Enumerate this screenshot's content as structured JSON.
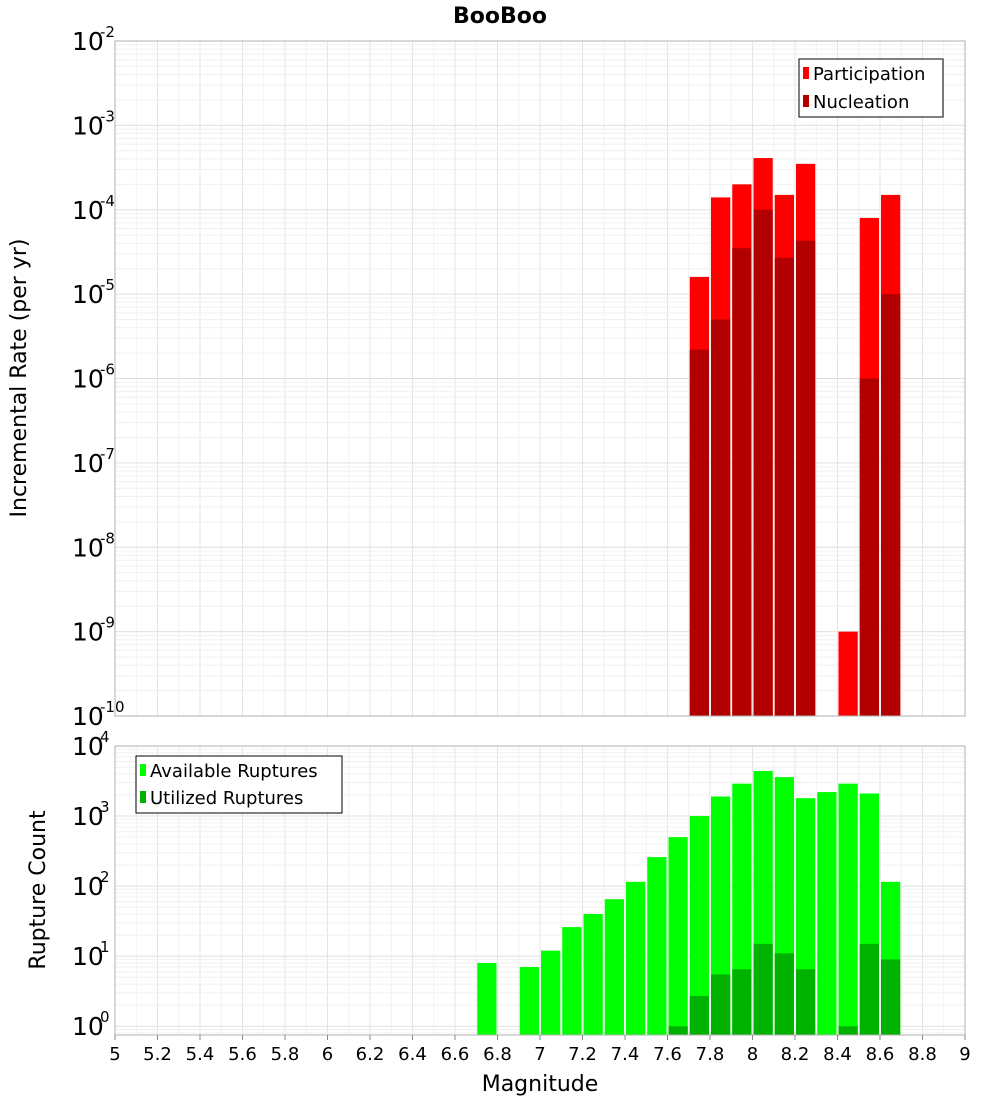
{
  "chart_data": [
    {
      "type": "bar",
      "title": "BooBoo",
      "ylabel": "Incremental Rate (per yr)",
      "yscale": "log",
      "ylim": [
        1e-10,
        0.01
      ],
      "xlim": [
        5,
        9
      ],
      "grid": true,
      "legend_position": "top-right",
      "bin_width": 0.1,
      "series": [
        {
          "name": "Participation",
          "color": "#ff0000",
          "x": [
            7.75,
            7.85,
            7.95,
            8.05,
            8.15,
            8.25,
            8.45,
            8.55,
            8.65
          ],
          "values": [
            1.6e-05,
            0.00014,
            0.0002,
            0.00041,
            0.00015,
            0.00035,
            1e-09,
            8e-05,
            0.00015
          ]
        },
        {
          "name": "Nucleation",
          "color": "#b20000",
          "x": [
            7.75,
            7.85,
            7.95,
            8.05,
            8.15,
            8.25,
            8.55,
            8.65
          ],
          "values": [
            2.2e-06,
            5e-06,
            3.5e-05,
            0.0001,
            2.7e-05,
            4.3e-05,
            1e-06,
            1e-05
          ]
        }
      ],
      "y_tick_exponents": [
        -10,
        -9,
        -8,
        -7,
        -6,
        -5,
        -4,
        -3,
        -2
      ]
    },
    {
      "type": "bar",
      "ylabel": "Rupture Count",
      "xlabel": "Magnitude",
      "yscale": "log",
      "ylim": [
        0.75,
        10000
      ],
      "xlim": [
        5,
        9
      ],
      "grid": true,
      "legend_position": "top-left",
      "bin_width": 0.1,
      "x_tick_labels": [
        "5",
        "5.2",
        "5.4",
        "5.6",
        "5.8",
        "6",
        "6.2",
        "6.4",
        "6.6",
        "6.8",
        "7",
        "7.2",
        "7.4",
        "7.6",
        "7.8",
        "8",
        "8.2",
        "8.4",
        "8.6",
        "8.8",
        "9"
      ],
      "series": [
        {
          "name": "Available Ruptures",
          "color": "#00ff00",
          "x": [
            6.75,
            6.95,
            7.05,
            7.15,
            7.25,
            7.35,
            7.45,
            7.55,
            7.65,
            7.75,
            7.85,
            7.95,
            8.05,
            8.15,
            8.25,
            8.35,
            8.45,
            8.55,
            8.65
          ],
          "values": [
            8,
            7,
            12,
            26,
            40,
            65,
            115,
            260,
            500,
            1000,
            1900,
            2900,
            4400,
            3600,
            1800,
            2200,
            2900,
            2100,
            115
          ]
        },
        {
          "name": "Utilized Ruptures",
          "color": "#00b200",
          "x": [
            7.65,
            7.75,
            7.85,
            7.95,
            8.05,
            8.15,
            8.25,
            8.45,
            8.55,
            8.65
          ],
          "values": [
            1,
            2.7,
            5.5,
            6.5,
            15,
            11,
            6.5,
            1,
            15,
            9
          ]
        }
      ],
      "y_tick_exponents": [
        0,
        1,
        2,
        3,
        4
      ]
    }
  ]
}
